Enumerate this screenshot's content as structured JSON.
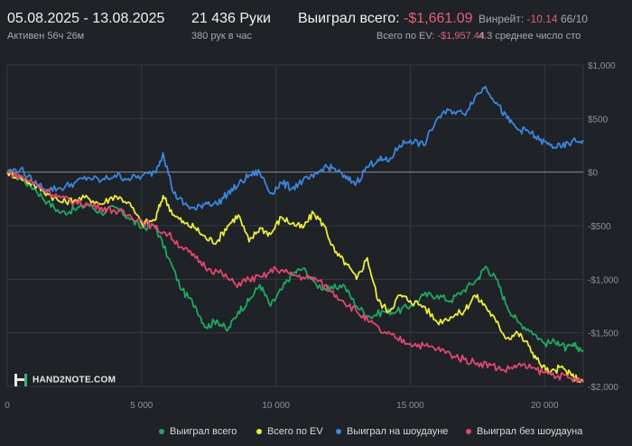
{
  "header": {
    "date_range": "05.08.2025 - 13.08.2025",
    "active": "Активен 56ч 26м",
    "hands": "21 436 Руки",
    "hands_per_hour": "380 рук в час",
    "won_total_label": "Выиграл всего:",
    "won_total_value": "-$1,661.09",
    "ev_label": "Всего по EV:",
    "ev_value": "-$1,957.44",
    "winrate_label": "Винрейт:",
    "winrate_value": "-10.14",
    "winrate_extra": "66/10",
    "avg_count": "4.3 среднее число сто"
  },
  "logo": {
    "text": "HAND2NOTE.COM"
  },
  "colors": {
    "background": "#1f2227",
    "grid": "#34383f",
    "zero_line": "#8a8d92",
    "axis_text": "#8e9196",
    "won_total": "#1fa862",
    "ev": "#ecec3c",
    "showdown": "#3b86de",
    "non_showdown": "#e2466f"
  },
  "legend": [
    {
      "label": "Выиграл всего",
      "color": "#1fa862"
    },
    {
      "label": "Всего по EV",
      "color": "#ecec3c"
    },
    {
      "label": "Выиграл на шоудауне",
      "color": "#3b86de"
    },
    {
      "label": "Выиграл без шоудауна",
      "color": "#e2466f"
    }
  ],
  "chart_data": {
    "type": "line",
    "xlim": [
      0,
      21436
    ],
    "ylim": [
      -2000,
      1000
    ],
    "x_ticks": [
      {
        "value": 0,
        "label": "0"
      },
      {
        "value": 5000,
        "label": "5 000"
      },
      {
        "value": 10000,
        "label": "10 000"
      },
      {
        "value": 15000,
        "label": "15 000"
      },
      {
        "value": 20000,
        "label": "20 000"
      }
    ],
    "y_ticks": [
      {
        "value": 1000,
        "label": "$1,000"
      },
      {
        "value": 500,
        "label": "$500"
      },
      {
        "value": 0,
        "label": "$0"
      },
      {
        "value": -500,
        "label": "-$500"
      },
      {
        "value": -1000,
        "label": "-$1,000"
      },
      {
        "value": -1500,
        "label": "-$1,500"
      },
      {
        "value": -2000,
        "label": "-$2,000"
      }
    ],
    "grid": true,
    "legend_position": "bottom",
    "series": [
      {
        "name": "Выиграл всего",
        "color": "#1fa862",
        "points": [
          [
            0,
            0
          ],
          [
            500,
            -60
          ],
          [
            1000,
            -150
          ],
          [
            1500,
            -280
          ],
          [
            2000,
            -380
          ],
          [
            2500,
            -350
          ],
          [
            3000,
            -300
          ],
          [
            3500,
            -380
          ],
          [
            4000,
            -330
          ],
          [
            4500,
            -420
          ],
          [
            5000,
            -520
          ],
          [
            5500,
            -500
          ],
          [
            6000,
            -800
          ],
          [
            6500,
            -1100
          ],
          [
            7000,
            -1250
          ],
          [
            7400,
            -1450
          ],
          [
            7800,
            -1380
          ],
          [
            8200,
            -1480
          ],
          [
            8600,
            -1300
          ],
          [
            9000,
            -1200
          ],
          [
            9400,
            -1050
          ],
          [
            9800,
            -1250
          ],
          [
            10200,
            -1100
          ],
          [
            10600,
            -950
          ],
          [
            11000,
            -900
          ],
          [
            11500,
            -1050
          ],
          [
            12000,
            -1100
          ],
          [
            12500,
            -1050
          ],
          [
            13000,
            -1250
          ],
          [
            13500,
            -1350
          ],
          [
            14000,
            -1300
          ],
          [
            14500,
            -1300
          ],
          [
            15000,
            -1250
          ],
          [
            15500,
            -1150
          ],
          [
            16000,
            -1150
          ],
          [
            16500,
            -1200
          ],
          [
            17000,
            -1100
          ],
          [
            17500,
            -1000
          ],
          [
            17800,
            -880
          ],
          [
            18200,
            -1000
          ],
          [
            18600,
            -1250
          ],
          [
            19000,
            -1400
          ],
          [
            19500,
            -1480
          ],
          [
            20000,
            -1600
          ],
          [
            20500,
            -1580
          ],
          [
            20800,
            -1650
          ],
          [
            21100,
            -1620
          ],
          [
            21436,
            -1661
          ]
        ]
      },
      {
        "name": "Всего по EV",
        "color": "#ecec3c",
        "points": [
          [
            0,
            0
          ],
          [
            500,
            -50
          ],
          [
            1000,
            -120
          ],
          [
            1500,
            -200
          ],
          [
            2000,
            -280
          ],
          [
            2500,
            -260
          ],
          [
            3000,
            -240
          ],
          [
            3500,
            -300
          ],
          [
            4000,
            -220
          ],
          [
            4500,
            -280
          ],
          [
            5000,
            -480
          ],
          [
            5500,
            -450
          ],
          [
            5800,
            -220
          ],
          [
            6200,
            -400
          ],
          [
            6600,
            -480
          ],
          [
            7000,
            -520
          ],
          [
            7400,
            -620
          ],
          [
            7800,
            -650
          ],
          [
            8200,
            -500
          ],
          [
            8600,
            -400
          ],
          [
            9000,
            -650
          ],
          [
            9400,
            -520
          ],
          [
            9800,
            -580
          ],
          [
            10200,
            -420
          ],
          [
            10600,
            -480
          ],
          [
            11000,
            -520
          ],
          [
            11400,
            -380
          ],
          [
            11800,
            -500
          ],
          [
            12200,
            -750
          ],
          [
            12600,
            -850
          ],
          [
            13000,
            -1000
          ],
          [
            13400,
            -800
          ],
          [
            13800,
            -1200
          ],
          [
            14200,
            -1300
          ],
          [
            14600,
            -1150
          ],
          [
            15000,
            -1200
          ],
          [
            15500,
            -1250
          ],
          [
            16000,
            -1400
          ],
          [
            16500,
            -1350
          ],
          [
            17000,
            -1300
          ],
          [
            17400,
            -1150
          ],
          [
            17800,
            -1250
          ],
          [
            18200,
            -1400
          ],
          [
            18600,
            -1550
          ],
          [
            19000,
            -1500
          ],
          [
            19400,
            -1620
          ],
          [
            19800,
            -1780
          ],
          [
            20200,
            -1880
          ],
          [
            20600,
            -1820
          ],
          [
            21000,
            -1900
          ],
          [
            21436,
            -1957
          ]
        ]
      },
      {
        "name": "Выиграл на шоудауне",
        "color": "#3b86de",
        "points": [
          [
            0,
            0
          ],
          [
            500,
            30
          ],
          [
            1000,
            -100
          ],
          [
            1500,
            -160
          ],
          [
            2000,
            -150
          ],
          [
            2500,
            -100
          ],
          [
            3000,
            -50
          ],
          [
            3500,
            -80
          ],
          [
            4000,
            -30
          ],
          [
            4500,
            -60
          ],
          [
            5000,
            -40
          ],
          [
            5500,
            0
          ],
          [
            5800,
            180
          ],
          [
            6200,
            -200
          ],
          [
            6600,
            -300
          ],
          [
            7000,
            -350
          ],
          [
            7400,
            -280
          ],
          [
            7800,
            -300
          ],
          [
            8200,
            -200
          ],
          [
            8600,
            -120
          ],
          [
            9000,
            -30
          ],
          [
            9400,
            0
          ],
          [
            9800,
            -200
          ],
          [
            10200,
            -100
          ],
          [
            10600,
            -150
          ],
          [
            11000,
            -80
          ],
          [
            11400,
            -50
          ],
          [
            11800,
            50
          ],
          [
            12200,
            30
          ],
          [
            12600,
            -60
          ],
          [
            13000,
            -100
          ],
          [
            13400,
            50
          ],
          [
            13800,
            120
          ],
          [
            14200,
            100
          ],
          [
            14600,
            250
          ],
          [
            15000,
            300
          ],
          [
            15500,
            250
          ],
          [
            16000,
            500
          ],
          [
            16500,
            580
          ],
          [
            17000,
            540
          ],
          [
            17400,
            700
          ],
          [
            17800,
            800
          ],
          [
            18200,
            650
          ],
          [
            18600,
            500
          ],
          [
            19000,
            400
          ],
          [
            19400,
            380
          ],
          [
            19800,
            300
          ],
          [
            20200,
            250
          ],
          [
            20600,
            230
          ],
          [
            21000,
            280
          ],
          [
            21436,
            300
          ]
        ]
      },
      {
        "name": "Выиграл без шоудауна",
        "color": "#e2466f",
        "points": [
          [
            0,
            0
          ],
          [
            500,
            -40
          ],
          [
            1000,
            -100
          ],
          [
            1500,
            -180
          ],
          [
            2000,
            -240
          ],
          [
            2500,
            -280
          ],
          [
            3000,
            -300
          ],
          [
            3500,
            -330
          ],
          [
            4000,
            -360
          ],
          [
            4500,
            -400
          ],
          [
            5000,
            -450
          ],
          [
            5500,
            -520
          ],
          [
            6000,
            -580
          ],
          [
            6500,
            -700
          ],
          [
            7000,
            -800
          ],
          [
            7500,
            -900
          ],
          [
            8000,
            -950
          ],
          [
            8500,
            -1050
          ],
          [
            9000,
            -1000
          ],
          [
            9500,
            -980
          ],
          [
            10000,
            -900
          ],
          [
            10500,
            -950
          ],
          [
            11000,
            -980
          ],
          [
            11500,
            -1000
          ],
          [
            12000,
            -1100
          ],
          [
            12500,
            -1200
          ],
          [
            13000,
            -1300
          ],
          [
            13500,
            -1400
          ],
          [
            14000,
            -1500
          ],
          [
            14500,
            -1550
          ],
          [
            15000,
            -1600
          ],
          [
            15500,
            -1620
          ],
          [
            16000,
            -1650
          ],
          [
            16500,
            -1700
          ],
          [
            17000,
            -1750
          ],
          [
            17500,
            -1780
          ],
          [
            18000,
            -1800
          ],
          [
            18500,
            -1850
          ],
          [
            19000,
            -1800
          ],
          [
            19500,
            -1830
          ],
          [
            20000,
            -1870
          ],
          [
            20500,
            -1900
          ],
          [
            21000,
            -1930
          ],
          [
            21436,
            -1960
          ]
        ]
      }
    ]
  }
}
